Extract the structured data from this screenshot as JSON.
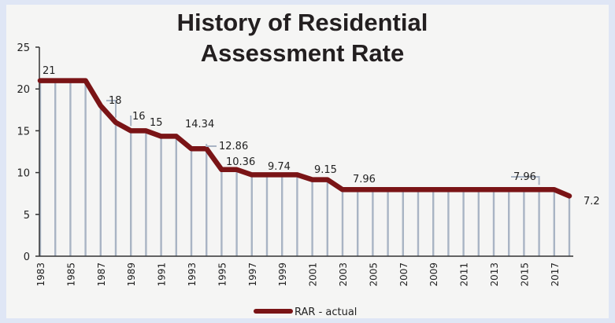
{
  "chart_data": {
    "type": "line",
    "title": "History of Residential Assessment Rate",
    "title_lines": [
      "History of Residential",
      "Assessment Rate"
    ],
    "xlabel": "",
    "ylabel": "",
    "ylim": [
      0,
      25
    ],
    "y_ticks": [
      "0",
      "5",
      "10",
      "15",
      "20",
      "25"
    ],
    "x": [
      1983,
      1984,
      1985,
      1986,
      1987,
      1988,
      1989,
      1990,
      1991,
      1992,
      1993,
      1994,
      1995,
      1996,
      1997,
      1998,
      1999,
      2000,
      2001,
      2002,
      2003,
      2004,
      2005,
      2006,
      2007,
      2008,
      2009,
      2010,
      2011,
      2012,
      2013,
      2014,
      2015,
      2016,
      2017,
      2018
    ],
    "x_tick_labels": [
      "1983",
      "1985",
      "1987",
      "1989",
      "1991",
      "1993",
      "1995",
      "1997",
      "1999",
      "2001",
      "2003",
      "2005",
      "2007",
      "2009",
      "2011",
      "2013",
      "2015",
      "2017"
    ],
    "series": [
      {
        "name": "RAR - actual",
        "color": "#7a1416",
        "values": [
          21,
          21,
          21,
          21,
          18,
          16,
          15,
          15,
          14.34,
          14.34,
          12.86,
          12.86,
          10.36,
          10.36,
          9.74,
          9.74,
          9.74,
          9.74,
          9.15,
          9.15,
          7.96,
          7.96,
          7.96,
          7.96,
          7.96,
          7.96,
          7.96,
          7.96,
          7.96,
          7.96,
          7.96,
          7.96,
          7.96,
          7.96,
          7.96,
          7.2
        ]
      }
    ],
    "drop_line_color": "#a9b4c4",
    "data_labels": [
      {
        "text": "21",
        "value": 21
      },
      {
        "text": "18",
        "value": 18
      },
      {
        "text": "16",
        "value": 16
      },
      {
        "text": "15",
        "value": 15
      },
      {
        "text": "14.34",
        "value": 14.34
      },
      {
        "text": "12.86",
        "value": 12.86
      },
      {
        "text": "10.36",
        "value": 10.36
      },
      {
        "text": "9.74",
        "value": 9.74
      },
      {
        "text": "9.15",
        "value": 9.15
      },
      {
        "text": "7.96",
        "value": 7.96
      },
      {
        "text": "7.96",
        "value": 7.96
      },
      {
        "text": "7.2",
        "value": 7.2
      }
    ],
    "grid": false,
    "legend_position": "bottom-center"
  }
}
